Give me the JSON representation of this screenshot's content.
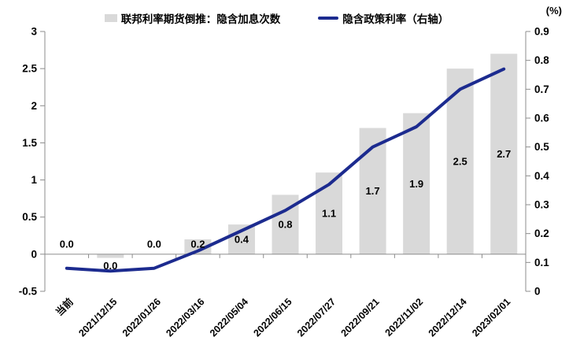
{
  "colors": {
    "bar": "#d9d9d9",
    "line": "#1c2b8f",
    "axis": "#8c8c8c",
    "text": "#000000",
    "background": "#ffffff"
  },
  "chart_data": {
    "type": "combo",
    "title": "",
    "legend_position": "top-center",
    "grid": false,
    "categories": [
      "当前",
      "2021/12/15",
      "2022/01/26",
      "2022/03/16",
      "2022/05/04",
      "2022/06/15",
      "2022/07/27",
      "2022/09/21",
      "2022/11/02",
      "2022/12/14",
      "2023/02/01"
    ],
    "series": [
      {
        "name": "联邦利率期货倒推：隐含加息次数",
        "type": "bar",
        "axis": "left",
        "color": "#d9d9d9",
        "values": [
          0.0,
          -0.05,
          0.0,
          0.2,
          0.4,
          0.8,
          1.1,
          1.7,
          1.9,
          2.5,
          2.7
        ],
        "labels": [
          "0.0",
          "0.0",
          "0.0",
          "0.2",
          "0.4",
          "0.8",
          "1.1",
          "1.7",
          "1.9",
          "2.5",
          "2.7"
        ]
      },
      {
        "name": "隐含政策利率（右轴）",
        "type": "line",
        "axis": "right",
        "color": "#1c2b8f",
        "values": [
          0.08,
          0.07,
          0.08,
          0.14,
          0.21,
          0.28,
          0.37,
          0.5,
          0.57,
          0.7,
          0.77
        ]
      }
    ],
    "left_axis": {
      "min": -0.5,
      "max": 3,
      "step": 0.5,
      "tick_values": [
        3,
        2.5,
        2,
        1.5,
        1,
        0.5,
        0,
        -0.5
      ],
      "tick_labels": [
        "3",
        "2.5",
        "2",
        "1.5",
        "1",
        "0.5",
        "0",
        "-0.5"
      ]
    },
    "right_axis": {
      "min": 0,
      "max": 0.9,
      "step": 0.1,
      "unit": "(%)",
      "tick_values": [
        0.9,
        0.8,
        0.7,
        0.6,
        0.5,
        0.4,
        0.3,
        0.2,
        0.1,
        0
      ],
      "tick_labels": [
        "0.9",
        "0.8",
        "0.7",
        "0.6",
        "0.5",
        "0.4",
        "0.3",
        "0.2",
        "0.1",
        "0"
      ]
    },
    "legend": [
      {
        "label": "联邦利率期货倒推：隐含加息次数",
        "marker": "bar-swatch"
      },
      {
        "label": "隐含政策利率（右轴）",
        "marker": "line-swatch"
      }
    ]
  }
}
